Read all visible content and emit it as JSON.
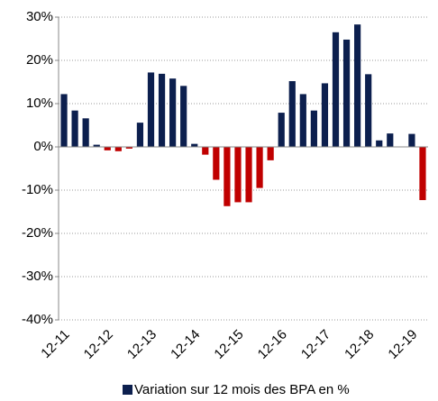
{
  "chart_data": {
    "type": "bar",
    "categories": [
      "12-11",
      null,
      null,
      null,
      "12-12",
      null,
      null,
      null,
      "12-13",
      null,
      null,
      null,
      "12-14",
      null,
      null,
      null,
      "12-15",
      null,
      null,
      null,
      "12-16",
      null,
      null,
      null,
      "12-17",
      null,
      null,
      null,
      "12-18",
      null,
      null,
      null,
      "12-19",
      null
    ],
    "series": [
      {
        "name": "Variation sur 12 mois des BPA en %",
        "color": "#0c1f4e",
        "negative_color": "#c00000",
        "values": [
          12.2,
          8.4,
          6.6,
          0.5,
          -0.8,
          -1.0,
          -0.4,
          5.6,
          17.2,
          16.9,
          15.8,
          14.1,
          0.7,
          -1.8,
          -7.6,
          -13.7,
          -12.8,
          -12.8,
          -9.5,
          -3.1,
          7.9,
          15.2,
          12.2,
          8.4,
          14.7,
          26.5,
          24.8,
          28.3,
          16.8,
          1.5,
          3.1,
          0,
          3.0,
          -12.3
        ]
      }
    ],
    "ylim": [
      -40,
      30
    ],
    "yticks": [
      {
        "value": -40,
        "label": "-40%"
      },
      {
        "value": -30,
        "label": "-30%"
      },
      {
        "value": -20,
        "label": "-20%"
      },
      {
        "value": -10,
        "label": "-10%"
      },
      {
        "value": 0,
        "label": "0%"
      },
      {
        "value": 10,
        "label": "10%"
      },
      {
        "value": 20,
        "label": "20%"
      },
      {
        "value": 30,
        "label": "30%"
      }
    ],
    "grid": true,
    "legend": "bottom"
  }
}
